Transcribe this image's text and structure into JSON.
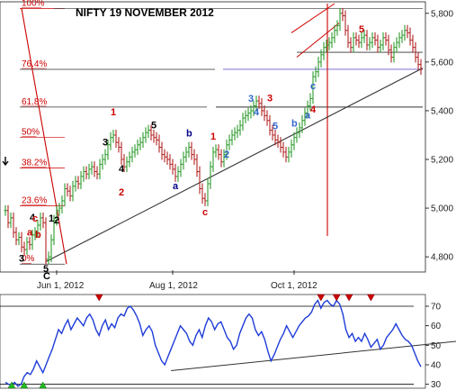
{
  "chart_data": [
    {
      "type": "ohlc",
      "title": "NIFTY 19 NOVEMBER 2012",
      "x_ticks": [
        "Jun 1, 2012",
        "Aug 1, 2012",
        "Oct 1, 2012"
      ],
      "y_ticks": [
        "5,800",
        "5,600",
        "5,400",
        "5,200",
        "5,000",
        "4,800"
      ],
      "y_tick_values": [
        5800,
        5600,
        5400,
        5200,
        5000,
        4800
      ],
      "ylim": [
        4745,
        5840
      ],
      "fib_levels": [
        {
          "label": "100%",
          "value": 5820
        },
        {
          "label": "76.4%",
          "value": 5570
        },
        {
          "label": "61.8%",
          "value": 5415
        },
        {
          "label": "50%",
          "value": 5290
        },
        {
          "label": "38.2%",
          "value": 5165
        },
        {
          "label": "23.6%",
          "value": 5010
        },
        {
          "label": "0%",
          "value": 4770
        }
      ],
      "wave_labels": [
        {
          "text": "3",
          "color": "#000000",
          "series_index": 6,
          "dy": 16
        },
        {
          "text": "a",
          "color": "#cc0000",
          "series_index": 9,
          "dy": -10
        },
        {
          "text": "4",
          "color": "#000000",
          "series_index": 10,
          "dy": -16
        },
        {
          "text": "c",
          "color": "#cc0000",
          "series_index": 11,
          "dy": -12
        },
        {
          "text": "b",
          "color": "#cc0000",
          "series_index": 12,
          "dy": 14
        },
        {
          "text": "5",
          "color": "#000000",
          "series_index": 15,
          "dy": 14
        },
        {
          "text": "C",
          "color": "#000000",
          "series_index": 15,
          "dy": 22
        },
        {
          "text": "1",
          "color": "#000000",
          "series_index": 17,
          "dy": -20
        },
        {
          "text": "2",
          "color": "#000000",
          "series_index": 19,
          "dy": 14
        },
        {
          "text": "3",
          "color": "#000000",
          "series_index": 37,
          "dy": -10
        },
        {
          "text": "4",
          "color": "#000000",
          "series_index": 43,
          "dy": 14
        },
        {
          "text": "2",
          "color": "#cc0000",
          "series_index": 43,
          "dy": 40
        },
        {
          "text": "1",
          "color": "#cc0000",
          "series_index": 40,
          "dy": -22
        },
        {
          "text": "5",
          "color": "#000000",
          "series_index": 55,
          "dy": -10
        },
        {
          "text": "a",
          "color": "#00008b",
          "series_index": 63,
          "dy": 14
        },
        {
          "text": "b",
          "color": "#00008b",
          "series_index": 68,
          "dy": -12
        },
        {
          "text": "c",
          "color": "#cc0000",
          "series_index": 74,
          "dy": 16
        },
        {
          "text": "1",
          "color": "#cc0000",
          "series_index": 77,
          "dy": -14
        },
        {
          "text": "2",
          "color": "#3366cc",
          "series_index": 82,
          "dy": 14
        },
        {
          "text": "3",
          "color": "#3366cc",
          "series_index": 91,
          "dy": -10
        },
        {
          "text": "4",
          "color": "#3366cc",
          "series_index": 93,
          "dy": 16
        },
        {
          "text": "5",
          "color": "#3366cc",
          "series_index": 100,
          "dy": -12
        },
        {
          "text": "3",
          "color": "#cc0000",
          "series_index": 98,
          "dy": -32
        },
        {
          "text": "b",
          "color": "#3366cc",
          "series_index": 107,
          "dy": -12
        },
        {
          "text": "a",
          "color": "#3366cc",
          "series_index": 112,
          "dy": 14
        },
        {
          "text": "c",
          "color": "#3366cc",
          "series_index": 114,
          "dy": 14
        },
        {
          "text": "4",
          "color": "#cc0000",
          "series_index": 114,
          "dy": 40
        },
        {
          "text": "5",
          "color": "#cc0000",
          "series_index": 132,
          "dy": -6
        }
      ],
      "series_close": [
        4990,
        4940,
        4960,
        4900,
        4870,
        4880,
        4840,
        4830,
        4860,
        4850,
        4890,
        4900,
        4930,
        4960,
        4940,
        4790,
        4800,
        4870,
        4950,
        4990,
        5000,
        5030,
        5080,
        5070,
        5050,
        5090,
        5110,
        5100,
        5130,
        5150,
        5140,
        5160,
        5170,
        5150,
        5140,
        5180,
        5200,
        5220,
        5260,
        5290,
        5300,
        5270,
        5250,
        5200,
        5170,
        5190,
        5210,
        5230,
        5240,
        5260,
        5270,
        5290,
        5310,
        5320,
        5300,
        5290,
        5280,
        5250,
        5220,
        5210,
        5200,
        5180,
        5160,
        5130,
        5150,
        5180,
        5210,
        5230,
        5250,
        5220,
        5200,
        5150,
        5080,
        5040,
        5030,
        5100,
        5170,
        5230,
        5240,
        5220,
        5190,
        5220,
        5260,
        5280,
        5300,
        5310,
        5320,
        5340,
        5370,
        5380,
        5390,
        5400,
        5420,
        5440,
        5430,
        5400,
        5380,
        5360,
        5320,
        5300,
        5280,
        5270,
        5250,
        5230,
        5210,
        5230,
        5260,
        5290,
        5310,
        5330,
        5360,
        5390,
        5420,
        5450,
        5540,
        5560,
        5600,
        5630,
        5660,
        5670,
        5680,
        5700,
        5730,
        5750,
        5800,
        5790,
        5730,
        5680,
        5660,
        5700,
        5690,
        5680,
        5700,
        5710,
        5670,
        5680,
        5700,
        5690,
        5660,
        5670,
        5700,
        5690,
        5650,
        5620,
        5660,
        5680,
        5700,
        5710,
        5730,
        5720,
        5690,
        5660,
        5620,
        5590,
        5570
      ]
    },
    {
      "type": "line",
      "y_ticks": [
        "70",
        "60",
        "50",
        "40",
        "30"
      ],
      "y_tick_values": [
        70,
        60,
        50,
        40,
        30
      ],
      "ylim": [
        28,
        76
      ],
      "values": [
        31,
        30,
        30,
        31,
        29,
        30,
        34,
        36,
        35,
        38,
        42,
        39,
        36,
        40,
        44,
        48,
        53,
        58,
        56,
        60,
        63,
        58,
        61,
        64,
        62,
        60,
        64,
        66,
        63,
        58,
        55,
        60,
        63,
        58,
        61,
        59,
        64,
        66,
        65,
        69,
        70,
        68,
        65,
        61,
        55,
        58,
        60,
        57,
        50,
        46,
        42,
        40,
        44,
        48,
        52,
        56,
        60,
        58,
        56,
        52,
        50,
        55,
        58,
        54,
        60,
        64,
        62,
        58,
        61,
        62,
        58,
        54,
        52,
        48,
        50,
        56,
        60,
        64,
        66,
        64,
        58,
        55,
        57,
        53,
        47,
        42,
        45,
        49,
        53,
        56,
        60,
        57,
        54,
        57,
        60,
        62,
        64,
        65,
        67,
        71,
        73,
        69,
        72,
        73,
        71,
        70,
        73,
        71,
        66,
        58,
        54,
        56,
        52,
        54,
        52,
        56,
        53,
        49,
        51,
        53,
        48,
        50,
        54,
        56,
        58,
        61,
        58,
        55,
        53,
        52,
        50,
        46,
        42,
        39
      ],
      "top_markers_at_index": [
        30,
        101,
        106,
        110,
        117
      ],
      "bottom_markers_at_index": [
        2,
        6,
        12
      ]
    }
  ]
}
